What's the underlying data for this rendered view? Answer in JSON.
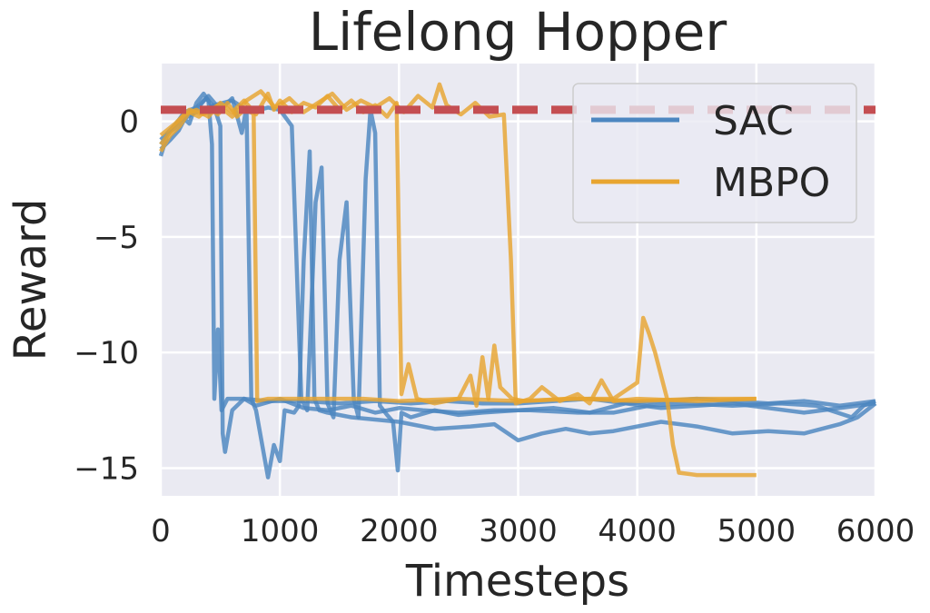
{
  "colors": {
    "background": "#eaeaf2",
    "grid": "#ffffff",
    "sac": "#4c86c0",
    "mbpo": "#e8a530",
    "reference": "#c44e52"
  },
  "chart_data": {
    "type": "line",
    "title": "Lifelong Hopper",
    "xlabel": "Timesteps",
    "ylabel": "Reward",
    "xlim": [
      0,
      6000
    ],
    "ylim": [
      -16.2,
      2.5
    ],
    "xticks": [
      0,
      1000,
      2000,
      3000,
      4000,
      5000,
      6000
    ],
    "yticks": [
      0,
      -5,
      -10,
      -15
    ],
    "xtick_labels": [
      "0",
      "1000",
      "2000",
      "3000",
      "4000",
      "5000",
      "6000"
    ],
    "ytick_labels": [
      "0",
      "−5",
      "−10",
      "−15"
    ],
    "grid": true,
    "legend": {
      "position": "top-right",
      "entries": [
        "SAC",
        "MBPO"
      ]
    },
    "reference_line": {
      "y": 0.5,
      "style": "dashed"
    },
    "series": [
      {
        "name": "SAC",
        "group": "SAC",
        "points": [
          [
            0,
            -1.5
          ],
          [
            60,
            -0.5
          ],
          [
            120,
            -0.3
          ],
          [
            180,
            0.2
          ],
          [
            240,
            -0.1
          ],
          [
            300,
            0.8
          ],
          [
            360,
            1.2
          ],
          [
            400,
            0.9
          ],
          [
            430,
            -1.0
          ],
          [
            450,
            -12.0
          ],
          [
            480,
            -9.0
          ],
          [
            510,
            -12.5
          ],
          [
            560,
            -12.0
          ],
          [
            700,
            -12.0
          ],
          [
            900,
            -12.1
          ],
          [
            1200,
            -12.1
          ],
          [
            1500,
            -12.2
          ],
          [
            1800,
            -12.1
          ],
          [
            2100,
            -12.2
          ],
          [
            2400,
            -12.1
          ],
          [
            2700,
            -12.2
          ],
          [
            3000,
            -12.2
          ],
          [
            3300,
            -12.1
          ],
          [
            3600,
            -12.0
          ],
          [
            3900,
            -12.2
          ],
          [
            4200,
            -12.1
          ],
          [
            4500,
            -12.0
          ],
          [
            4800,
            -12.1
          ],
          [
            5100,
            -12.2
          ],
          [
            5400,
            -12.1
          ],
          [
            5700,
            -12.3
          ],
          [
            5850,
            -12.2
          ],
          [
            6000,
            -12.1
          ]
        ]
      },
      {
        "name": "SAC",
        "group": "SAC",
        "points": [
          [
            0,
            -1.2
          ],
          [
            80,
            -0.8
          ],
          [
            150,
            -0.4
          ],
          [
            220,
            0.3
          ],
          [
            300,
            0.5
          ],
          [
            380,
            1.0
          ],
          [
            450,
            0.6
          ],
          [
            500,
            -0.2
          ],
          [
            520,
            -13.5
          ],
          [
            540,
            -14.3
          ],
          [
            600,
            -12.5
          ],
          [
            700,
            -12.0
          ],
          [
            800,
            -12.3
          ],
          [
            1000,
            -12.0
          ],
          [
            1200,
            -12.4
          ],
          [
            1400,
            -12.5
          ],
          [
            1600,
            -12.3
          ],
          [
            1800,
            -12.6
          ],
          [
            2000,
            -12.4
          ],
          [
            2200,
            -12.5
          ],
          [
            2500,
            -12.6
          ],
          [
            2800,
            -12.5
          ],
          [
            3100,
            -12.5
          ],
          [
            3500,
            -12.6
          ],
          [
            3800,
            -12.6
          ],
          [
            4100,
            -12.3
          ],
          [
            4400,
            -12.2
          ],
          [
            4800,
            -12.3
          ],
          [
            5200,
            -12.2
          ],
          [
            5500,
            -12.3
          ],
          [
            5800,
            -12.8
          ],
          [
            5900,
            -12.3
          ],
          [
            6000,
            -12.1
          ]
        ]
      },
      {
        "name": "SAC",
        "group": "SAC",
        "points": [
          [
            0,
            -1.0
          ],
          [
            100,
            -0.3
          ],
          [
            200,
            0.4
          ],
          [
            300,
            0.6
          ],
          [
            400,
            1.1
          ],
          [
            500,
            0.5
          ],
          [
            600,
            1.0
          ],
          [
            680,
            -0.5
          ],
          [
            720,
            0.6
          ],
          [
            760,
            -12.0
          ],
          [
            800,
            -12.5
          ],
          [
            900,
            -15.4
          ],
          [
            950,
            -14.0
          ],
          [
            1000,
            -14.7
          ],
          [
            1040,
            -12.5
          ],
          [
            1120,
            -12.6
          ],
          [
            1160,
            -12.3
          ],
          [
            1200,
            -6.0
          ],
          [
            1250,
            -1.3
          ],
          [
            1290,
            -12.0
          ],
          [
            1330,
            -12.5
          ],
          [
            1400,
            -12.6
          ],
          [
            1600,
            -12.8
          ],
          [
            1800,
            -12.9
          ],
          [
            2000,
            -13.0
          ],
          [
            2300,
            -13.3
          ],
          [
            2600,
            -13.2
          ],
          [
            2800,
            -13.1
          ],
          [
            3000,
            -13.8
          ],
          [
            3200,
            -13.5
          ],
          [
            3400,
            -13.3
          ],
          [
            3600,
            -13.5
          ],
          [
            3800,
            -13.4
          ],
          [
            4200,
            -13.0
          ],
          [
            4500,
            -13.2
          ],
          [
            4800,
            -13.5
          ],
          [
            5100,
            -13.4
          ],
          [
            5400,
            -13.5
          ],
          [
            5700,
            -13.1
          ],
          [
            5850,
            -12.8
          ],
          [
            6000,
            -12.2
          ]
        ]
      },
      {
        "name": "SAC",
        "group": "SAC",
        "points": [
          [
            0,
            -0.8
          ],
          [
            150,
            0.0
          ],
          [
            300,
            0.4
          ],
          [
            450,
            0.7
          ],
          [
            600,
            0.9
          ],
          [
            750,
            0.4
          ],
          [
            900,
            0.6
          ],
          [
            1000,
            0.5
          ],
          [
            1100,
            -0.2
          ],
          [
            1180,
            -12.0
          ],
          [
            1230,
            -12.5
          ],
          [
            1300,
            -3.5
          ],
          [
            1350,
            -2.0
          ],
          [
            1400,
            -12.2
          ],
          [
            1450,
            -12.8
          ],
          [
            1500,
            -6.0
          ],
          [
            1560,
            -3.5
          ],
          [
            1620,
            -12.0
          ],
          [
            1660,
            -12.8
          ],
          [
            1720,
            -2.5
          ],
          [
            1760,
            0.5
          ],
          [
            1800,
            -0.5
          ],
          [
            1840,
            -12.3
          ],
          [
            1900,
            -12.7
          ],
          [
            1950,
            -13.0
          ],
          [
            1990,
            -15.1
          ],
          [
            2020,
            -12.6
          ],
          [
            2100,
            -12.8
          ],
          [
            2300,
            -12.5
          ],
          [
            2500,
            -12.7
          ],
          [
            2700,
            -12.6
          ],
          [
            3000,
            -12.5
          ],
          [
            3300,
            -12.4
          ],
          [
            3600,
            -12.6
          ],
          [
            3900,
            -12.2
          ],
          [
            4200,
            -12.4
          ],
          [
            4500,
            -12.3
          ],
          [
            4800,
            -12.2
          ],
          [
            5100,
            -12.4
          ],
          [
            5400,
            -12.6
          ],
          [
            5700,
            -12.4
          ],
          [
            6000,
            -12.2
          ]
        ]
      },
      {
        "name": "MBPO",
        "group": "MBPO",
        "points": [
          [
            0,
            -1.3
          ],
          [
            80,
            -0.6
          ],
          [
            160,
            -0.2
          ],
          [
            240,
            0.4
          ],
          [
            320,
            0.2
          ],
          [
            400,
            0.6
          ],
          [
            480,
            0.3
          ],
          [
            560,
            0.8
          ],
          [
            640,
            0.2
          ],
          [
            720,
            0.6
          ],
          [
            780,
            0.3
          ],
          [
            810,
            -12.1
          ],
          [
            900,
            -12.0
          ],
          [
            1200,
            -12.0
          ],
          [
            1500,
            -12.0
          ],
          [
            1700,
            -12.0
          ],
          [
            2000,
            -12.1
          ],
          [
            2500,
            -12.0
          ],
          [
            3000,
            -12.1
          ],
          [
            3500,
            -12.0
          ],
          [
            4000,
            -12.1
          ],
          [
            4500,
            -12.0
          ],
          [
            5000,
            -12.0
          ]
        ]
      },
      {
        "name": "MBPO",
        "group": "MBPO",
        "points": [
          [
            0,
            -1.0
          ],
          [
            100,
            -0.3
          ],
          [
            200,
            0.3
          ],
          [
            300,
            0.5
          ],
          [
            400,
            0.2
          ],
          [
            500,
            0.8
          ],
          [
            600,
            0.4
          ],
          [
            700,
            0.9
          ],
          [
            800,
            0.3
          ],
          [
            900,
            1.2
          ],
          [
            950,
            0.5
          ],
          [
            1000,
            0.9
          ],
          [
            1100,
            0.4
          ],
          [
            1200,
            0.8
          ],
          [
            1300,
            0.6
          ],
          [
            1400,
            1.1
          ],
          [
            1500,
            0.5
          ],
          [
            1600,
            0.9
          ],
          [
            1700,
            0.4
          ],
          [
            1800,
            0.7
          ],
          [
            1900,
            0.2
          ],
          [
            1980,
            0.8
          ],
          [
            2020,
            -11.8
          ],
          [
            2080,
            -10.5
          ],
          [
            2150,
            -12.0
          ],
          [
            2300,
            -12.2
          ],
          [
            2500,
            -12.0
          ],
          [
            2600,
            -11.0
          ],
          [
            2650,
            -12.3
          ],
          [
            2700,
            -10.2
          ],
          [
            2750,
            -12.0
          ],
          [
            2800,
            -9.7
          ],
          [
            2850,
            -11.5
          ],
          [
            2950,
            -12.0
          ],
          [
            3050,
            -12.1
          ],
          [
            3400,
            -12.0
          ],
          [
            3800,
            -12.0
          ],
          [
            4000,
            -11.3
          ],
          [
            4050,
            -8.5
          ],
          [
            4100,
            -9.2
          ],
          [
            4150,
            -10.0
          ],
          [
            4250,
            -12.0
          ],
          [
            4300,
            -14.0
          ],
          [
            4350,
            -15.2
          ],
          [
            4500,
            -15.3
          ],
          [
            4800,
            -15.3
          ],
          [
            5000,
            -15.3
          ]
        ]
      },
      {
        "name": "MBPO",
        "group": "MBPO",
        "points": [
          [
            0,
            -0.6
          ],
          [
            120,
            -0.1
          ],
          [
            240,
            0.5
          ],
          [
            360,
            0.3
          ],
          [
            480,
            0.7
          ],
          [
            600,
            0.2
          ],
          [
            720,
            0.9
          ],
          [
            840,
            1.3
          ],
          [
            960,
            0.6
          ],
          [
            1080,
            1.0
          ],
          [
            1200,
            0.4
          ],
          [
            1320,
            0.8
          ],
          [
            1440,
            1.2
          ],
          [
            1560,
            0.5
          ],
          [
            1680,
            0.9
          ],
          [
            1800,
            0.6
          ],
          [
            1920,
            1.0
          ],
          [
            2040,
            0.4
          ],
          [
            2160,
            1.1
          ],
          [
            2280,
            0.6
          ],
          [
            2340,
            1.6
          ],
          [
            2400,
            0.7
          ],
          [
            2520,
            0.3
          ],
          [
            2640,
            0.8
          ],
          [
            2760,
            0.2
          ],
          [
            2880,
            0.3
          ],
          [
            2940,
            -6.0
          ],
          [
            2980,
            -12.2
          ],
          [
            3100,
            -12.0
          ],
          [
            3200,
            -11.5
          ],
          [
            3350,
            -12.1
          ],
          [
            3500,
            -11.8
          ],
          [
            3600,
            -12.2
          ],
          [
            3700,
            -11.2
          ],
          [
            3800,
            -12.1
          ],
          [
            4000,
            -12.0
          ],
          [
            4500,
            -12.1
          ],
          [
            5000,
            -12.0
          ]
        ]
      }
    ]
  }
}
